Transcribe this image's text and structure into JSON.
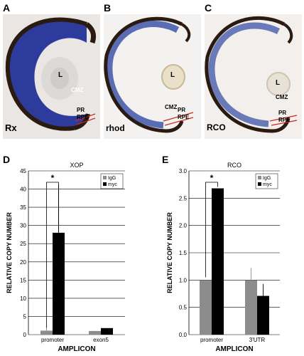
{
  "panels": {
    "A": {
      "letter": "A",
      "stain": "Rx"
    },
    "B": {
      "letter": "B",
      "stain": "rhod"
    },
    "C": {
      "letter": "C",
      "stain": "RCO"
    },
    "D": {
      "letter": "D"
    },
    "E": {
      "letter": "E"
    }
  },
  "eye_labels": {
    "lens": "L",
    "cmz": "CMZ",
    "pr": "PR",
    "rpe": "RPE"
  },
  "colors": {
    "igg": "#8c8c8c",
    "myc": "#000000",
    "stain_blue": "#2f3f9f",
    "pigment": "#2a1a10",
    "marker_red": "#c8281e"
  },
  "chart_data": [
    {
      "panel": "D",
      "type": "bar",
      "title": "XOP",
      "xlabel": "AMPLICON",
      "ylabel": "RELATIVE COPY NUMBER",
      "categories": [
        "promoter",
        "exon5"
      ],
      "series": [
        {
          "name": "IgG",
          "values": [
            1.1,
            1.0
          ],
          "errors": [
            1.3,
            0
          ]
        },
        {
          "name": "myc",
          "values": [
            28.0,
            1.8
          ],
          "errors": [
            13.3,
            0
          ]
        }
      ],
      "ylim": [
        0,
        45
      ],
      "yticks": [
        "0",
        "5",
        "10",
        "15",
        "20",
        "25",
        "30",
        "35",
        "40",
        "45"
      ],
      "grid": true,
      "legend": "top-right",
      "significance": "*"
    },
    {
      "panel": "E",
      "type": "bar",
      "title": "RCO",
      "xlabel": "AMPLICON",
      "ylabel": "RELATIVE COPY NUMBER",
      "categories": [
        "promoter",
        "3'UTR"
      ],
      "series": [
        {
          "name": "IgG",
          "values": [
            1.0,
            1.0
          ],
          "errors": [
            0,
            0.22
          ]
        },
        {
          "name": "myc",
          "values": [
            2.68,
            0.71
          ],
          "errors": [
            0,
            0.22
          ]
        }
      ],
      "ylim": [
        0,
        3.0
      ],
      "yticks": [
        "0.0",
        "0.5",
        "1.0",
        "1.5",
        "2.0",
        "2.5",
        "3.0"
      ],
      "grid": true,
      "legend": "top-right",
      "significance": "*"
    }
  ]
}
